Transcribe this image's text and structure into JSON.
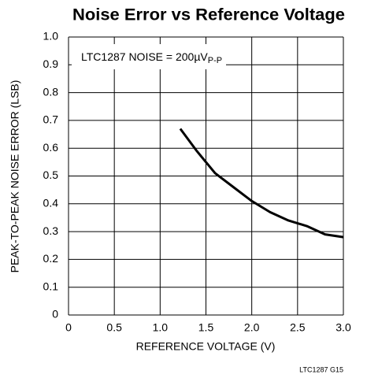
{
  "chart_data": {
    "type": "line",
    "title": "Noise Error vs Reference Voltage",
    "xlabel": "REFERENCE VOLTAGE (V)",
    "ylabel": "PEAK-TO-PEAK NOISE ERROR (LSB)",
    "annotation": {
      "text": "LTC1287 NOISE = 200µV",
      "subscript": "P-P"
    },
    "footnote": "LTC1287 G15",
    "x": [
      1.22,
      1.4,
      1.6,
      1.8,
      2.0,
      2.2,
      2.4,
      2.6,
      2.8,
      3.0
    ],
    "series": [
      {
        "color": "#000000",
        "values": [
          0.67,
          0.59,
          0.51,
          0.46,
          0.41,
          0.37,
          0.34,
          0.32,
          0.29,
          0.28
        ]
      }
    ],
    "xlim": [
      0,
      3
    ],
    "ylim": [
      0,
      1
    ],
    "xticks": [
      0,
      0.5,
      {
        "value": 1,
        "label": "1.0"
      },
      1.5,
      {
        "value": 2,
        "label": "2.0"
      },
      2.5,
      {
        "value": 3,
        "label": "3.0"
      }
    ],
    "yticks": [
      0,
      0.1,
      0.2,
      0.3,
      0.4,
      0.5,
      0.6,
      0.7,
      0.8,
      0.9,
      {
        "value": 1,
        "label": "1.0"
      }
    ],
    "grid": true
  }
}
